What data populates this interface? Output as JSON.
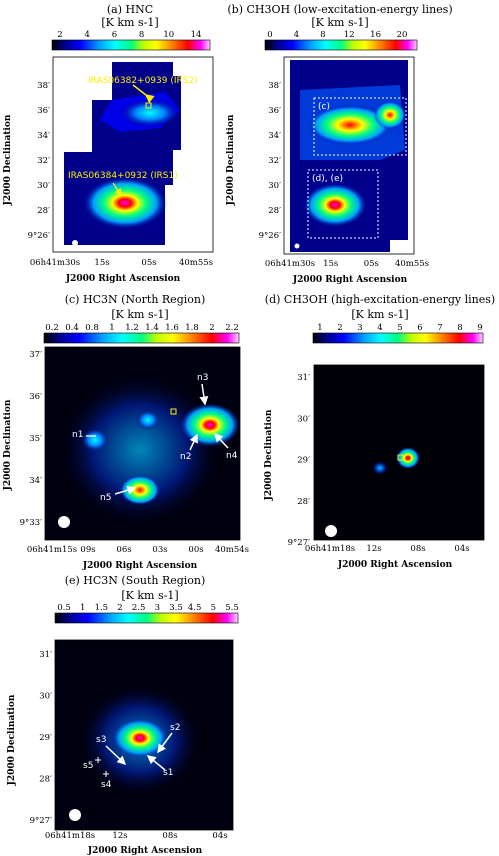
{
  "panels": [
    {
      "id": "a",
      "title": "(a) HNC",
      "unit": "[K km s-1]",
      "colorbar_ticks": [
        "2",
        "4",
        "6",
        "8",
        "10",
        "14"
      ],
      "xticks": [
        "06h41m30s",
        "15s",
        "05s",
        "40m55s"
      ],
      "yticks": [
        "38′",
        "36′",
        "34′",
        "32′",
        "30′",
        "28′",
        "9°26′"
      ],
      "xlabel": "J2000 Right Ascension",
      "ylabel": "J2000 Declination",
      "labels": [
        "IRAS06382+0939 (IRS2)",
        "IRAS06384+0932 (IRS1)"
      ]
    },
    {
      "id": "b",
      "title": "(b) CH3OH (low-excitation-energy lines)",
      "unit": "[K km s-1]",
      "colorbar_ticks": [
        "0",
        "4",
        "8",
        "12",
        "16",
        "20"
      ],
      "xticks": [
        "06h41m30s",
        "15s",
        "05s",
        "40m55s"
      ],
      "yticks": [
        "38′",
        "36′",
        "34′",
        "32′",
        "30′",
        "28′",
        "9°26′"
      ],
      "xlabel": "J2000 Right Ascension",
      "ylabel": "J2000 Declination",
      "labels": [
        "(c)",
        "(d), (e)"
      ]
    },
    {
      "id": "c",
      "title": "(c) HC3N (North Region)",
      "unit": "[K km s-1]",
      "colorbar_ticks": [
        "0.2",
        "0.4",
        "0.8",
        "1",
        "1.2",
        "1.4",
        "1.6",
        "1.8",
        "2",
        "2.2"
      ],
      "xticks": [
        "06h41m15s",
        "09s",
        "06s",
        "03s",
        "00s",
        "40m54s"
      ],
      "yticks": [
        "37′",
        "36′",
        "35′",
        "34′",
        "9°33′"
      ],
      "xlabel": "J2000 Right Ascension",
      "ylabel": "J2000 Declination",
      "labels": [
        "n1",
        "n2",
        "n3",
        "n4",
        "n5"
      ]
    },
    {
      "id": "d",
      "title": "(d) CH3OH (high-excitation-energy lines)",
      "unit": "[K km s-1]",
      "colorbar_ticks": [
        "1",
        "2",
        "3",
        "4",
        "5",
        "6",
        "7",
        "8",
        "9"
      ],
      "xticks": [
        "06h41m18s",
        "12s",
        "08s",
        "04s"
      ],
      "yticks": [
        "31′",
        "30′",
        "29′",
        "28′",
        "9°27′"
      ],
      "xlabel": "J2000 Right Ascension",
      "ylabel": "J2000 Declination",
      "labels": []
    },
    {
      "id": "e",
      "title": "(e) HC3N (South Region)",
      "unit": "[K km s-1]",
      "colorbar_ticks": [
        "0.5",
        "1",
        "1.5",
        "2",
        "2.5",
        "3",
        "3.5",
        "4.5",
        "5",
        "5.5"
      ],
      "xticks": [
        "06h41m18s",
        "12s",
        "08s",
        "04s"
      ],
      "yticks": [
        "31′",
        "30′",
        "29′",
        "28′",
        "9°27′"
      ],
      "xlabel": "J2000 Right Ascension",
      "ylabel": "J2000 Declination",
      "labels": [
        "s1",
        "s2",
        "s3",
        "s4",
        "s5"
      ]
    }
  ],
  "colors": {
    "colormap": [
      "#000000",
      "#00008b",
      "#0000ff",
      "#00a0ff",
      "#00ffff",
      "#00ff80",
      "#c0ff00",
      "#ffff00",
      "#ff8000",
      "#ff0000",
      "#ff00ff",
      "#ffffff"
    ],
    "label_yellow": "#ffee00",
    "arrow_white": "#ffffff"
  }
}
